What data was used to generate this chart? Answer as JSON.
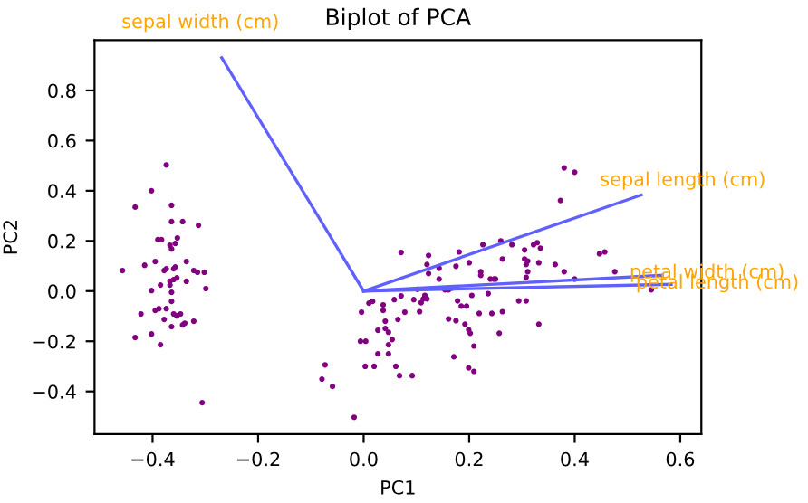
{
  "chart_data": {
    "type": "scatter",
    "title": "Biplot of PCA",
    "xlabel": "PC1",
    "ylabel": "PC2",
    "xlim": [
      -0.51,
      0.64
    ],
    "ylim": [
      -0.57,
      1.0
    ],
    "xticks": [
      {
        "value": -0.4,
        "label": "−0.4"
      },
      {
        "value": -0.2,
        "label": "−0.2"
      },
      {
        "value": 0,
        "label": "0.0"
      },
      0.2,
      0.4,
      0.6
    ],
    "yticks": [
      {
        "value": -0.4,
        "label": "−0.4"
      },
      {
        "value": -0.2,
        "label": "−0.2"
      },
      {
        "value": 0,
        "label": "0.0"
      },
      0.2,
      0.4,
      0.6,
      0.8
    ],
    "grid": false,
    "legend": false,
    "series": [
      {
        "type": "scatter",
        "marker": "circle",
        "color": "#800080",
        "x": [
          -0.374,
          -0.402,
          -0.433,
          -0.364,
          -0.364,
          -0.343,
          -0.313,
          -0.39,
          -0.383,
          -0.353,
          -0.367,
          -0.364,
          -0.357,
          -0.415,
          -0.395,
          -0.457,
          -0.378,
          -0.374,
          -0.36,
          -0.357,
          -0.336,
          -0.322,
          -0.315,
          -0.302,
          -0.354,
          -0.36,
          -0.367,
          -0.367,
          -0.385,
          -0.336,
          -0.299,
          -0.402,
          -0.364,
          -0.364,
          -0.395,
          -0.388,
          -0.374,
          -0.422,
          -0.378,
          -0.36,
          -0.354,
          -0.347,
          -0.343,
          -0.339,
          -0.322,
          -0.364,
          -0.433,
          -0.402,
          -0.385,
          -0.306,
          -0.073,
          -0.079,
          -0.059,
          -0.018,
          0.071,
          -0.004,
          -0.006,
          0.004,
          0.003,
          0.02,
          0.01,
          0.017,
          0.037,
          0.037,
          0.027,
          0.041,
          0.041,
          0.047,
          0.054,
          0.047,
          0.027,
          0.047,
          0.058,
          0.065,
          0.071,
          0.078,
          0.061,
          0.068,
          0.092,
          0.095,
          0.38,
          0.4,
          0.373,
          0.123,
          0.181,
          0.226,
          0.26,
          0.281,
          0.322,
          0.329,
          0.335,
          0.305,
          0.447,
          0.457,
          0.12,
          0.123,
          0.143,
          0.175,
          0.2,
          0.263,
          0.305,
          0.311,
          0.308,
          0.332,
          0.363,
          0.222,
          0.222,
          0.24,
          0.247,
          0.25,
          0.311,
          0.308,
          0.38,
          0.4,
          0.476,
          0.143,
          0.102,
          0.154,
          0.161,
          0.167,
          0.116,
          0.113,
          0.12,
          0.109,
          0.178,
          0.185,
          0.195,
          0.236,
          0.205,
          0.294,
          0.308,
          0.545,
          0.106,
          0.161,
          0.175,
          0.192,
          0.199,
          0.202,
          0.219,
          0.263,
          0.257,
          0.332,
          0.209,
          0.171,
          0.199,
          0.209,
          0.243
        ],
        "values": [
          0.503,
          0.4,
          0.335,
          0.342,
          0.277,
          0.277,
          0.262,
          0.205,
          0.205,
          0.212,
          0.183,
          0.168,
          0.19,
          0.103,
          0.118,
          0.082,
          0.082,
          0.089,
          0.089,
          0.096,
          0.118,
          0.082,
          0.075,
          0.075,
          0.053,
          0.046,
          0.039,
          0.024,
          0.024,
          0.039,
          0.01,
          0.002,
          -0.005,
          -0.041,
          -0.077,
          -0.07,
          -0.07,
          -0.091,
          -0.113,
          -0.091,
          -0.099,
          -0.091,
          -0.135,
          -0.128,
          -0.12,
          -0.142,
          -0.185,
          -0.171,
          -0.214,
          -0.445,
          -0.294,
          -0.351,
          -0.38,
          -0.503,
          0.154,
          -0.084,
          -0.2,
          -0.2,
          -0.3,
          -0.3,
          -0.048,
          -0.041,
          -0.055,
          -0.077,
          -0.156,
          -0.12,
          -0.149,
          -0.164,
          -0.193,
          -0.214,
          -0.25,
          -0.25,
          -0.034,
          -0.113,
          -0.019,
          -0.084,
          -0.3,
          -0.337,
          -0.337,
          -0.034,
          0.491,
          0.474,
          0.361,
          0.142,
          0.156,
          0.185,
          0.2,
          0.185,
          0.185,
          0.193,
          0.171,
          0.164,
          0.149,
          0.156,
          0.106,
          0.07,
          0.091,
          0.099,
          0.113,
          0.128,
          0.128,
          0.12,
          0.106,
          0.113,
          0.106,
          0.077,
          0.063,
          0.048,
          0.048,
          0.048,
          0.077,
          0.055,
          0.077,
          0.048,
          0.077,
          0.048,
          0.007,
          0.005,
          0.005,
          0.012,
          -0.017,
          -0.031,
          -0.031,
          -0.046,
          -0.039,
          -0.06,
          -0.06,
          -0.01,
          -0.017,
          -0.039,
          -0.039,
          0.005,
          -0.082,
          -0.111,
          -0.118,
          -0.132,
          -0.154,
          -0.168,
          -0.089,
          -0.082,
          -0.168,
          -0.132,
          -0.219,
          -0.262,
          -0.306,
          -0.32,
          -0.089
        ]
      },
      {
        "type": "line",
        "name": "sepal length (cm)",
        "color": "#6060ff",
        "x": [
          0,
          0.526
        ],
        "values": [
          0,
          0.383
        ]
      },
      {
        "type": "line",
        "name": "sepal width (cm)",
        "color": "#6060ff",
        "x": [
          0,
          -0.269
        ],
        "values": [
          0,
          0.93
        ]
      },
      {
        "type": "line",
        "name": "petal length (cm)",
        "color": "#6060ff",
        "x": [
          0,
          0.583
        ],
        "values": [
          0,
          0.027
        ]
      },
      {
        "type": "line",
        "name": "petal width (cm)",
        "color": "#6060ff",
        "x": [
          0,
          0.566
        ],
        "values": [
          0,
          0.063
        ]
      }
    ]
  }
}
